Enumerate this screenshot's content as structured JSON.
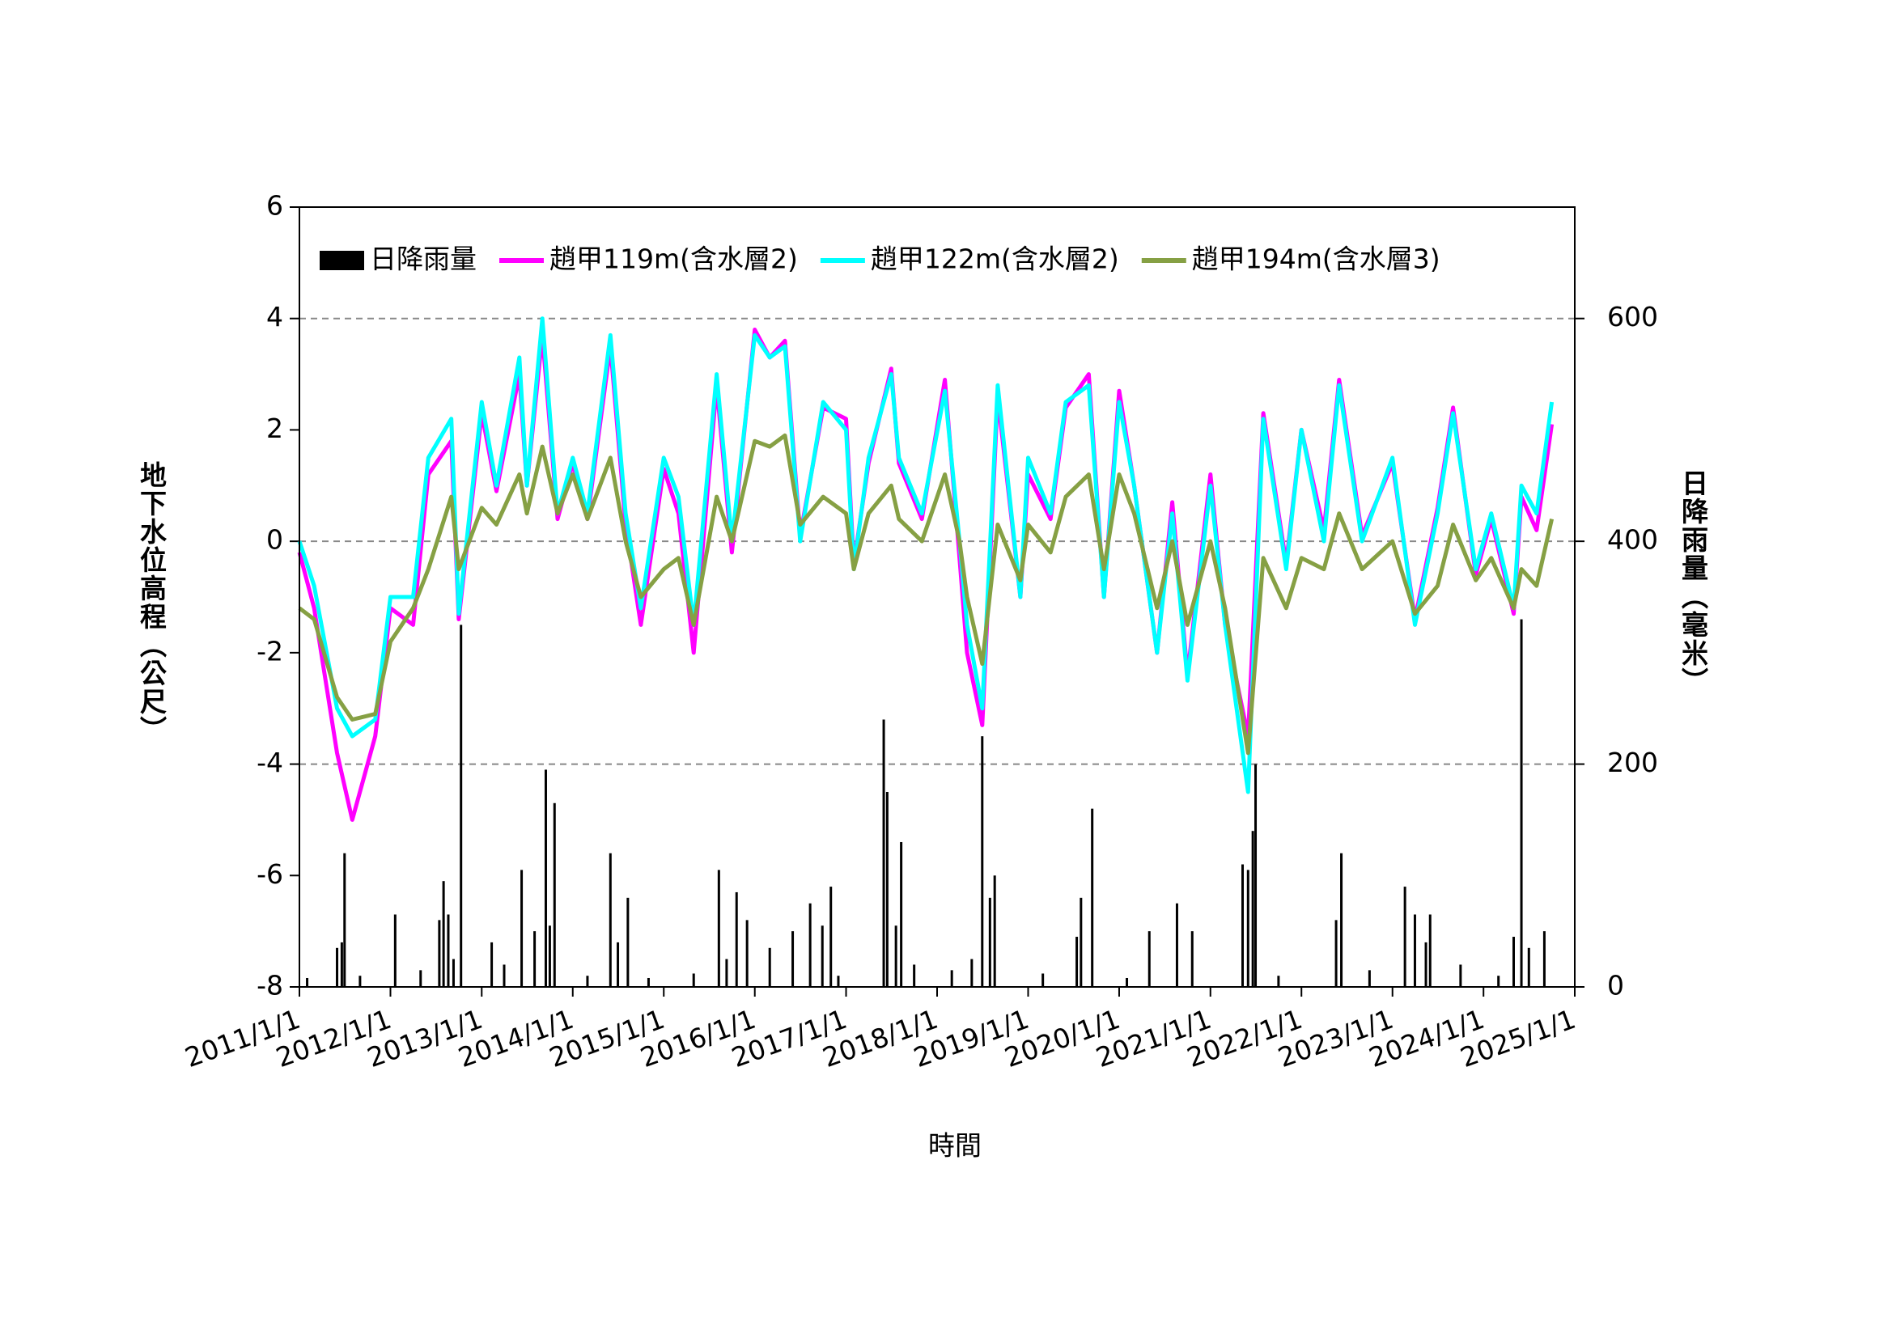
{
  "chart_data": {
    "type": "line",
    "x_label": "時間",
    "y_label": "地下水位高程（公尺）",
    "y2_label": "日降雨量（毫米）",
    "xlim": [
      "2011/1/1",
      "2025/1/1"
    ],
    "xticks": [
      "2011/1/1",
      "2012/1/1",
      "2013/1/1",
      "2014/1/1",
      "2015/1/1",
      "2016/1/1",
      "2017/1/1",
      "2018/1/1",
      "2019/1/1",
      "2020/1/1",
      "2021/1/1",
      "2022/1/1",
      "2023/1/1",
      "2024/1/1",
      "2025/1/1"
    ],
    "ylim": [
      -8,
      6
    ],
    "yticks": [
      -8,
      -6,
      -4,
      -2,
      0,
      2,
      4,
      6
    ],
    "y2lim": [
      0,
      700
    ],
    "y2ticks": [
      0,
      200,
      400,
      600
    ],
    "grid": true,
    "x": [
      "2011/1/1",
      "2011/3/1",
      "2011/6/1",
      "2011/8/1",
      "2011/11/1",
      "2012/1/1",
      "2012/4/1",
      "2012/6/1",
      "2012/9/1",
      "2012/10/1",
      "2013/1/1",
      "2013/3/1",
      "2013/6/1",
      "2013/7/1",
      "2013/9/1",
      "2013/11/1",
      "2014/1/1",
      "2014/3/1",
      "2014/6/1",
      "2014/8/1",
      "2014/10/1",
      "2015/1/1",
      "2015/3/1",
      "2015/5/1",
      "2015/8/1",
      "2015/10/1",
      "2016/1/1",
      "2016/3/1",
      "2016/5/1",
      "2016/7/1",
      "2016/10/1",
      "2017/1/1",
      "2017/2/1",
      "2017/4/1",
      "2017/7/1",
      "2017/8/1",
      "2017/11/1",
      "2018/2/1",
      "2018/4/1",
      "2018/5/1",
      "2018/7/1",
      "2018/9/1",
      "2018/12/1",
      "2019/1/1",
      "2019/4/1",
      "2019/6/1",
      "2019/9/1",
      "2019/11/1",
      "2020/1/1",
      "2020/3/1",
      "2020/6/1",
      "2020/8/1",
      "2020/10/1",
      "2021/1/1",
      "2021/3/1",
      "2021/6/1",
      "2021/8/1",
      "2021/11/1",
      "2022/1/1",
      "2022/4/1",
      "2022/6/1",
      "2022/9/1",
      "2023/1/1",
      "2023/4/1",
      "2023/7/1",
      "2023/9/1",
      "2023/12/1",
      "2024/2/1",
      "2024/5/1",
      "2024/6/1",
      "2024/8/1",
      "2024/10/1"
    ],
    "series": [
      {
        "name": "日降雨量",
        "type": "bar",
        "axis": "y2",
        "color": "#000000",
        "x": [
          "2011/2/1",
          "2011/6/1",
          "2011/6/20",
          "2011/7/1",
          "2011/9/1",
          "2012/1/20",
          "2012/5/1",
          "2012/7/15",
          "2012/8/1",
          "2012/8/20",
          "2012/9/10",
          "2012/10/10",
          "2013/2/10",
          "2013/4/1",
          "2013/6/10",
          "2013/8/1",
          "2013/9/15",
          "2013/10/1",
          "2013/10/20",
          "2014/3/1",
          "2014/6/1",
          "2014/7/1",
          "2014/8/10",
          "2014/11/1",
          "2015/5/1",
          "2015/8/10",
          "2015/9/10",
          "2015/10/20",
          "2015/12/1",
          "2016/3/1",
          "2016/6/1",
          "2016/8/10",
          "2016/9/28",
          "2016/11/1",
          "2016/12/1",
          "2017/6/1",
          "2017/6/15",
          "2017/7/20",
          "2017/8/10",
          "2017/10/1",
          "2018/3/1",
          "2018/5/20",
          "2018/7/1",
          "2018/8/1",
          "2018/8/20",
          "2019/3/1",
          "2019/7/15",
          "2019/8/1",
          "2019/9/15",
          "2020/2/1",
          "2020/5/1",
          "2020/8/20",
          "2020/10/20",
          "2021/5/10",
          "2021/6/1",
          "2021/6/20",
          "2021/7/1",
          "2021/10/1",
          "2022/5/20",
          "2022/6/10",
          "2022/10/1",
          "2023/2/20",
          "2023/4/1",
          "2023/5/15",
          "2023/6/1",
          "2023/10/1",
          "2024/3/1",
          "2024/5/1",
          "2024/6/1",
          "2024/7/1",
          "2024/9/1"
        ],
        "values": [
          8,
          35,
          40,
          120,
          10,
          65,
          15,
          60,
          95,
          65,
          25,
          325,
          40,
          20,
          105,
          50,
          195,
          55,
          165,
          10,
          120,
          40,
          80,
          8,
          12,
          105,
          25,
          85,
          60,
          35,
          50,
          75,
          55,
          90,
          10,
          240,
          175,
          55,
          130,
          20,
          15,
          25,
          225,
          80,
          100,
          12,
          45,
          80,
          160,
          8,
          50,
          75,
          50,
          110,
          105,
          140,
          200,
          10,
          60,
          120,
          15,
          90,
          65,
          40,
          65,
          20,
          10,
          45,
          330,
          35,
          50
        ]
      },
      {
        "name": "趙甲119m(含水層2)",
        "color": "#ff00ff",
        "values": [
          -0.2,
          -1.2,
          -3.8,
          -5,
          -3.5,
          -1.2,
          -1.5,
          1.2,
          1.8,
          -1.4,
          2.3,
          0.9,
          3,
          1,
          3.7,
          0.4,
          1.4,
          0.4,
          3.5,
          0.3,
          -1.5,
          1.3,
          0.5,
          -2,
          2.8,
          -0.2,
          3.8,
          3.3,
          3.6,
          0.1,
          2.4,
          2.2,
          -0.4,
          1.4,
          3.1,
          1.4,
          0.4,
          2.9,
          -0.3,
          -2,
          -3.3,
          2.6,
          -1,
          1.2,
          0.4,
          2.4,
          3,
          -1,
          2.7,
          1,
          -2,
          0.7,
          -2.4,
          1.2,
          -1.5,
          -3.5,
          2.3,
          -0.4,
          2,
          0.2,
          2.9,
          0.1,
          1.4,
          -1.4,
          0.6,
          2.4,
          -0.6,
          0.4,
          -1.3,
          0.8,
          0.2,
          2.1
        ]
      },
      {
        "name": "趙甲122m(含水層2)",
        "color": "#00ffff",
        "values": [
          0,
          -0.8,
          -3,
          -3.5,
          -3.2,
          -1,
          -1,
          1.5,
          2.2,
          -1.3,
          2.5,
          1,
          3.3,
          1,
          4,
          0.5,
          1.5,
          0.5,
          3.7,
          0.5,
          -1.2,
          1.5,
          0.8,
          -1.5,
          3,
          0,
          3.7,
          3.3,
          3.5,
          0,
          2.5,
          2,
          -0.5,
          1.5,
          3,
          1.5,
          0.5,
          2.7,
          0,
          -1.5,
          -3,
          2.8,
          -1,
          1.5,
          0.5,
          2.5,
          2.8,
          -1,
          2.5,
          1,
          -2,
          0.5,
          -2.5,
          1,
          -1.5,
          -4.5,
          2.2,
          -0.5,
          2,
          0,
          2.8,
          0,
          1.5,
          -1.5,
          0.5,
          2.3,
          -0.5,
          0.5,
          -1.2,
          1,
          0.5,
          2.5
        ]
      },
      {
        "name": "趙甲194m(含水層3)",
        "color": "#86a044",
        "values": [
          -1.2,
          -1.4,
          -2.8,
          -3.2,
          -3.1,
          -1.8,
          -1.2,
          -0.5,
          0.8,
          -0.5,
          0.6,
          0.3,
          1.2,
          0.5,
          1.7,
          0.5,
          1.2,
          0.4,
          1.5,
          0,
          -1,
          -0.5,
          -0.3,
          -1.5,
          0.8,
          0,
          1.8,
          1.7,
          1.9,
          0.3,
          0.8,
          0.5,
          -0.5,
          0.5,
          1,
          0.4,
          0,
          1.2,
          0,
          -1,
          -2.2,
          0.3,
          -0.7,
          0.3,
          -0.2,
          0.8,
          1.2,
          -0.5,
          1.2,
          0.5,
          -1.2,
          0,
          -1.5,
          0,
          -1.2,
          -3.8,
          -0.3,
          -1.2,
          -0.3,
          -0.5,
          0.5,
          -0.5,
          0,
          -1.3,
          -0.8,
          0.3,
          -0.7,
          -0.3,
          -1.2,
          -0.5,
          -0.8,
          0.4
        ]
      }
    ]
  }
}
